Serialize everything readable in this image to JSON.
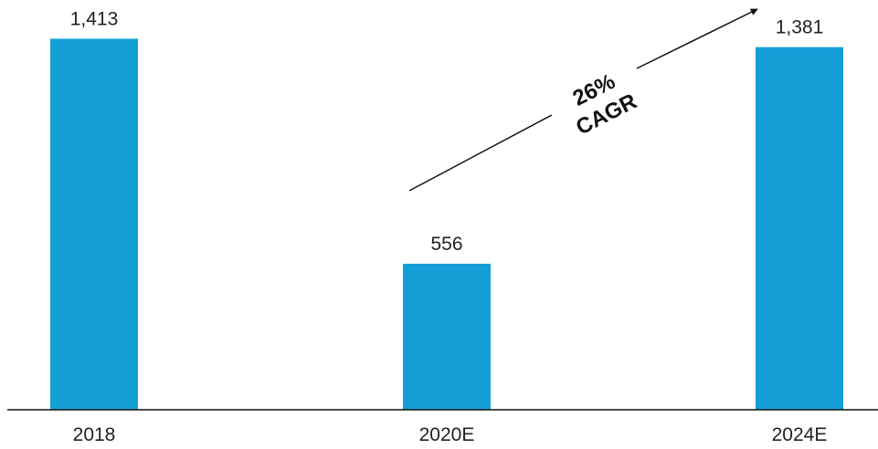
{
  "chart_data": {
    "type": "bar",
    "categories": [
      "2018",
      "2020E",
      "2024E"
    ],
    "values": [
      1413,
      556,
      1381
    ],
    "value_labels": [
      "1,413",
      "556",
      "1,381"
    ],
    "title": "",
    "xlabel": "",
    "ylabel": "",
    "ylim": [
      0,
      1550
    ],
    "grid": false,
    "legend": "none",
    "bar_color": "#149FD6",
    "annotation": {
      "line1": "26%",
      "line2": "CAGR",
      "from_category": "2020E",
      "to_category": "2024E"
    }
  }
}
